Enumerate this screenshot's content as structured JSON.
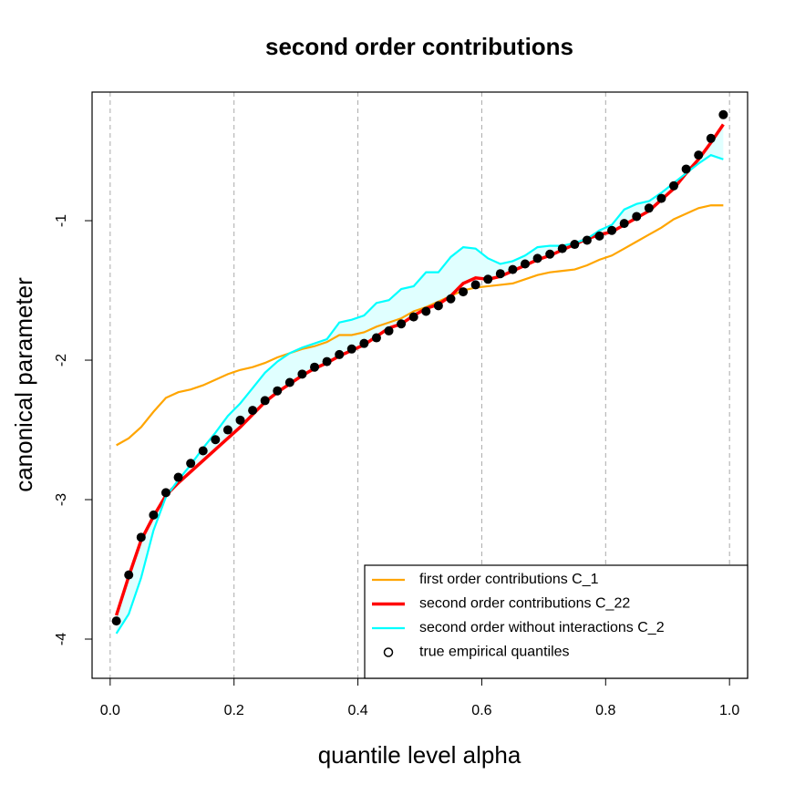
{
  "chart_data": {
    "type": "line",
    "title": "second order contributions",
    "x_label": "quantile level alpha",
    "y_label": "canonical parameter",
    "x": [
      0.01,
      0.03,
      0.05,
      0.07,
      0.09,
      0.11,
      0.13,
      0.15,
      0.17,
      0.19,
      0.21,
      0.23,
      0.25,
      0.27,
      0.29,
      0.31,
      0.33,
      0.35,
      0.37,
      0.39,
      0.41,
      0.43,
      0.45,
      0.47,
      0.49,
      0.51,
      0.53,
      0.55,
      0.57,
      0.59,
      0.61,
      0.63,
      0.65,
      0.67,
      0.69,
      0.71,
      0.73,
      0.75,
      0.77,
      0.79,
      0.81,
      0.83,
      0.85,
      0.87,
      0.89,
      0.91,
      0.93,
      0.95,
      0.97,
      0.99
    ],
    "series": [
      {
        "name": "first order contributions C_1",
        "color": "#ffa500",
        "mark": "line",
        "values": [
          -2.61,
          -2.56,
          -2.48,
          -2.37,
          -2.27,
          -2.23,
          -2.21,
          -2.18,
          -2.14,
          -2.1,
          -2.07,
          -2.05,
          -2.02,
          -1.98,
          -1.95,
          -1.92,
          -1.9,
          -1.87,
          -1.82,
          -1.82,
          -1.8,
          -1.76,
          -1.73,
          -1.7,
          -1.65,
          -1.62,
          -1.58,
          -1.54,
          -1.5,
          -1.48,
          -1.47,
          -1.46,
          -1.45,
          -1.42,
          -1.39,
          -1.37,
          -1.36,
          -1.35,
          -1.32,
          -1.28,
          -1.25,
          -1.2,
          -1.15,
          -1.1,
          -1.05,
          -0.99,
          -0.95,
          -0.91,
          -0.89,
          -0.89
        ]
      },
      {
        "name": "second order contributions C_22",
        "color": "#ff0000",
        "mark": "line",
        "values": [
          -3.83,
          -3.55,
          -3.29,
          -3.12,
          -2.97,
          -2.88,
          -2.8,
          -2.72,
          -2.64,
          -2.56,
          -2.48,
          -2.39,
          -2.3,
          -2.23,
          -2.17,
          -2.11,
          -2.06,
          -2.02,
          -1.97,
          -1.93,
          -1.89,
          -1.83,
          -1.77,
          -1.74,
          -1.68,
          -1.63,
          -1.6,
          -1.54,
          -1.45,
          -1.41,
          -1.42,
          -1.4,
          -1.36,
          -1.32,
          -1.28,
          -1.25,
          -1.21,
          -1.17,
          -1.13,
          -1.1,
          -1.08,
          -1.03,
          -0.98,
          -0.93,
          -0.85,
          -0.77,
          -0.66,
          -0.56,
          -0.44,
          -0.31
        ]
      },
      {
        "name": "second order without interactions C_2",
        "color": "#00ffff",
        "mark": "line",
        "values": [
          -3.96,
          -3.82,
          -3.56,
          -3.22,
          -2.98,
          -2.86,
          -2.75,
          -2.63,
          -2.52,
          -2.4,
          -2.31,
          -2.2,
          -2.09,
          -2.01,
          -1.95,
          -1.91,
          -1.88,
          -1.85,
          -1.73,
          -1.71,
          -1.68,
          -1.59,
          -1.57,
          -1.49,
          -1.47,
          -1.37,
          -1.37,
          -1.26,
          -1.19,
          -1.2,
          -1.27,
          -1.31,
          -1.29,
          -1.25,
          -1.19,
          -1.18,
          -1.18,
          -1.16,
          -1.13,
          -1.07,
          -1.03,
          -0.92,
          -0.88,
          -0.86,
          -0.8,
          -0.73,
          -0.66,
          -0.59,
          -0.53,
          -0.56
        ]
      },
      {
        "name": "true empirical quantiles",
        "color": "#000000",
        "mark": "points",
        "values": [
          -3.87,
          -3.54,
          -3.27,
          -3.11,
          -2.95,
          -2.84,
          -2.74,
          -2.65,
          -2.57,
          -2.5,
          -2.43,
          -2.36,
          -2.29,
          -2.22,
          -2.16,
          -2.1,
          -2.05,
          -2.01,
          -1.96,
          -1.92,
          -1.88,
          -1.84,
          -1.79,
          -1.74,
          -1.69,
          -1.65,
          -1.61,
          -1.56,
          -1.51,
          -1.46,
          -1.42,
          -1.38,
          -1.35,
          -1.31,
          -1.27,
          -1.24,
          -1.2,
          -1.17,
          -1.14,
          -1.11,
          -1.07,
          -1.02,
          -0.97,
          -0.91,
          -0.84,
          -0.75,
          -0.63,
          -0.53,
          -0.41,
          -0.24
        ]
      }
    ],
    "band_color": "#e0ffff",
    "xlim": [
      -0.0292,
      1.0292
    ],
    "ylim": [
      -4.281,
      -0.078
    ],
    "xticks": [
      {
        "value": 0,
        "label": "0.0"
      },
      0.2,
      0.4,
      0.6,
      0.8,
      {
        "value": 1,
        "label": "1.0"
      }
    ],
    "yticks": [
      -1,
      -2,
      -3,
      -4
    ],
    "grid": "x",
    "legend": "bottomright"
  }
}
